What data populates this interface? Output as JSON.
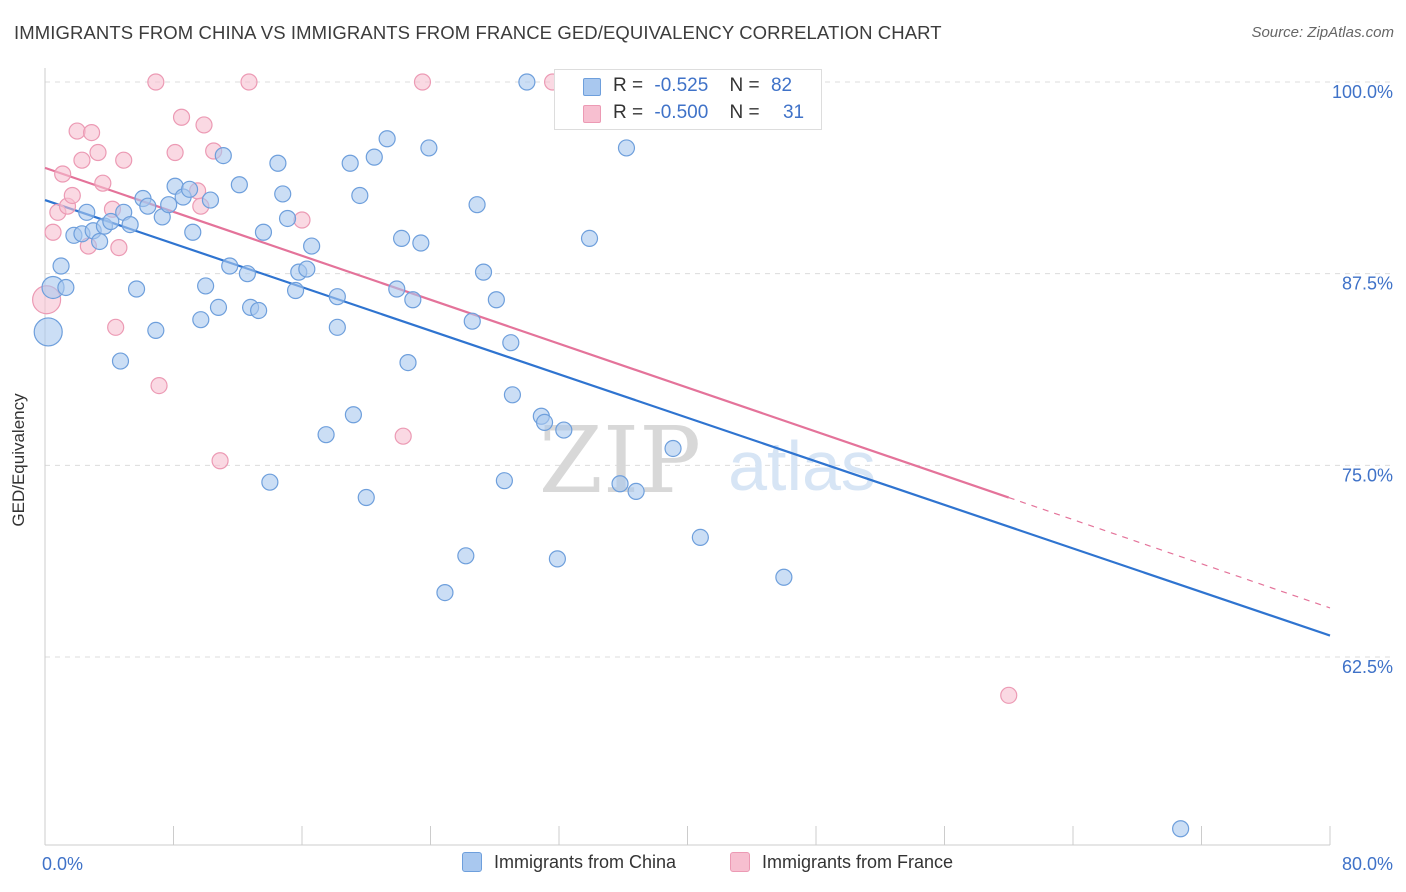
{
  "title": "IMMIGRANTS FROM CHINA VS IMMIGRANTS FROM FRANCE GED/EQUIVALENCY CORRELATION CHART",
  "source": "Source: ZipAtlas.com",
  "watermark": {
    "zip": "ZIP",
    "atlas": "atlas"
  },
  "legend": {
    "china": {
      "r_label": "R =",
      "r_value": "-0.525",
      "n_label": "N =",
      "n_value": "82"
    },
    "france": {
      "r_label": "R =",
      "r_value": "-0.500",
      "n_label": "N =",
      "n_value": "31"
    }
  },
  "colors": {
    "china_fill": "#a9c8ef",
    "china_stroke": "#6e9fdc",
    "china_line": "#2f74d0",
    "france_fill": "#f7bfd0",
    "france_stroke": "#ec9ab4",
    "france_line": "#e4739a",
    "axis_text": "#3f72c8",
    "grid": "#dcdcdc"
  },
  "chart_data": {
    "type": "scatter",
    "title": "IMMIGRANTS FROM CHINA VS IMMIGRANTS FROM FRANCE GED/EQUIVALENCY CORRELATION CHART",
    "xlabel": "",
    "ylabel": "GED/Equivalency",
    "xlim": [
      0,
      80
    ],
    "ylim": [
      50.5,
      101
    ],
    "x_tick_labels": [
      "0.0%",
      "80.0%"
    ],
    "y_ticks": [
      62.5,
      75.0,
      87.5,
      100.0
    ],
    "y_tick_labels": [
      "62.5%",
      "75.0%",
      "87.5%",
      "100.0%"
    ],
    "grid": "horizontal dashed",
    "legend_position": "top-center",
    "series": [
      {
        "name": "Immigrants from China",
        "points": [
          [
            0.2,
            83.7,
            28
          ],
          [
            0.5,
            86.6,
            22
          ],
          [
            1.0,
            88.0,
            16
          ],
          [
            1.3,
            86.6,
            16
          ],
          [
            1.8,
            90.0,
            16
          ],
          [
            2.3,
            90.1,
            16
          ],
          [
            2.6,
            91.5,
            16
          ],
          [
            3.0,
            90.3,
            16
          ],
          [
            3.4,
            89.6,
            16
          ],
          [
            3.7,
            90.6,
            16
          ],
          [
            4.1,
            90.9,
            16
          ],
          [
            4.9,
            91.5,
            16
          ],
          [
            5.3,
            90.7,
            16
          ],
          [
            5.7,
            86.5,
            16
          ],
          [
            6.1,
            92.4,
            16
          ],
          [
            6.4,
            91.9,
            16
          ],
          [
            4.7,
            81.8,
            16
          ],
          [
            6.9,
            83.8,
            16
          ],
          [
            7.3,
            91.2,
            16
          ],
          [
            7.7,
            92.0,
            16
          ],
          [
            8.1,
            93.2,
            16
          ],
          [
            8.6,
            92.5,
            16
          ],
          [
            9.0,
            93.0,
            16
          ],
          [
            9.2,
            90.2,
            16
          ],
          [
            9.7,
            84.5,
            16
          ],
          [
            10.0,
            86.7,
            16
          ],
          [
            10.3,
            92.3,
            16
          ],
          [
            10.8,
            85.3,
            16
          ],
          [
            11.1,
            95.2,
            16
          ],
          [
            11.5,
            88.0,
            16
          ],
          [
            12.1,
            93.3,
            16
          ],
          [
            12.6,
            87.5,
            16
          ],
          [
            12.8,
            85.3,
            16
          ],
          [
            13.3,
            85.1,
            16
          ],
          [
            13.6,
            90.2,
            16
          ],
          [
            14.0,
            73.9,
            16
          ],
          [
            14.5,
            94.7,
            16
          ],
          [
            14.8,
            92.7,
            16
          ],
          [
            15.1,
            91.1,
            16
          ],
          [
            15.6,
            86.4,
            16
          ],
          [
            15.8,
            87.6,
            16
          ],
          [
            16.3,
            87.8,
            16
          ],
          [
            16.6,
            89.3,
            16
          ],
          [
            17.5,
            77.0,
            16
          ],
          [
            18.2,
            86.0,
            16
          ],
          [
            18.2,
            84.0,
            16
          ],
          [
            19.0,
            94.7,
            16
          ],
          [
            19.2,
            78.3,
            16
          ],
          [
            19.6,
            92.6,
            16
          ],
          [
            20.0,
            72.9,
            16
          ],
          [
            20.5,
            95.1,
            16
          ],
          [
            21.3,
            96.3,
            16
          ],
          [
            21.9,
            86.5,
            16
          ],
          [
            22.2,
            89.8,
            16
          ],
          [
            22.6,
            81.7,
            16
          ],
          [
            22.9,
            85.8,
            16
          ],
          [
            23.4,
            89.5,
            16
          ],
          [
            23.9,
            95.7,
            16
          ],
          [
            24.9,
            66.7,
            16
          ],
          [
            26.2,
            69.1,
            16
          ],
          [
            26.6,
            84.4,
            16
          ],
          [
            26.9,
            92.0,
            16
          ],
          [
            27.3,
            87.6,
            16
          ],
          [
            28.1,
            85.8,
            16
          ],
          [
            28.6,
            74.0,
            16
          ],
          [
            29.0,
            83.0,
            16
          ],
          [
            29.1,
            79.6,
            16
          ],
          [
            30.0,
            100.0,
            16
          ],
          [
            30.9,
            78.2,
            16
          ],
          [
            31.1,
            77.8,
            16
          ],
          [
            31.9,
            68.9,
            16
          ],
          [
            32.3,
            77.3,
            16
          ],
          [
            33.2,
            100.0,
            16
          ],
          [
            33.5,
            99.2,
            16
          ],
          [
            33.9,
            89.8,
            16
          ],
          [
            35.8,
            73.8,
            16
          ],
          [
            36.2,
            95.7,
            16
          ],
          [
            36.8,
            73.3,
            16
          ],
          [
            39.1,
            76.1,
            16
          ],
          [
            40.8,
            70.3,
            16
          ],
          [
            46.0,
            67.7,
            16
          ],
          [
            70.7,
            51.3,
            16
          ]
        ],
        "trend": {
          "x": [
            0,
            80
          ],
          "y": [
            92.3,
            63.9
          ]
        }
      },
      {
        "name": "Immigrants from France",
        "points": [
          [
            0.1,
            85.8,
            28
          ],
          [
            0.5,
            90.2,
            16
          ],
          [
            0.8,
            91.5,
            16
          ],
          [
            1.1,
            94.0,
            16
          ],
          [
            1.4,
            91.9,
            16
          ],
          [
            1.7,
            92.6,
            16
          ],
          [
            2.0,
            96.8,
            16
          ],
          [
            2.3,
            94.9,
            16
          ],
          [
            2.7,
            89.3,
            16
          ],
          [
            2.9,
            96.7,
            16
          ],
          [
            3.3,
            95.4,
            16
          ],
          [
            3.6,
            93.4,
            16
          ],
          [
            4.2,
            91.7,
            16
          ],
          [
            4.6,
            89.2,
            16
          ],
          [
            4.9,
            94.9,
            16
          ],
          [
            4.4,
            84.0,
            16
          ],
          [
            6.9,
            100.0,
            16
          ],
          [
            7.1,
            80.2,
            16
          ],
          [
            8.1,
            95.4,
            16
          ],
          [
            8.5,
            97.7,
            16
          ],
          [
            9.5,
            92.9,
            16
          ],
          [
            9.7,
            91.9,
            16
          ],
          [
            9.9,
            97.2,
            16
          ],
          [
            10.5,
            95.5,
            16
          ],
          [
            10.9,
            75.3,
            16
          ],
          [
            12.7,
            100.0,
            16
          ],
          [
            16.0,
            91.0,
            16
          ],
          [
            22.3,
            76.9,
            16
          ],
          [
            23.5,
            100.0,
            16
          ],
          [
            31.6,
            100.0,
            16
          ],
          [
            60.0,
            60.0,
            16
          ]
        ],
        "trend": {
          "x": [
            0,
            60
          ],
          "y": [
            94.4,
            72.9
          ]
        },
        "trend_dashed": {
          "x": [
            60,
            80
          ],
          "y": [
            72.9,
            65.7
          ]
        }
      }
    ]
  },
  "bottom_legend": {
    "china": "Immigrants from China",
    "france": "Immigrants from France"
  }
}
